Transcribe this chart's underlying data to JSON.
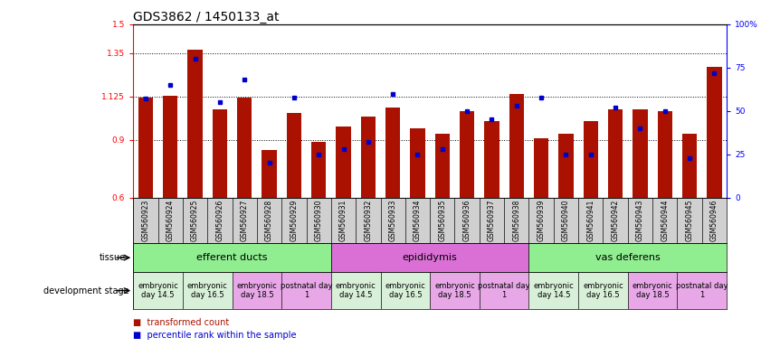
{
  "title": "GDS3862 / 1450133_at",
  "samples": [
    "GSM560923",
    "GSM560924",
    "GSM560925",
    "GSM560926",
    "GSM560927",
    "GSM560928",
    "GSM560929",
    "GSM560930",
    "GSM560931",
    "GSM560932",
    "GSM560933",
    "GSM560934",
    "GSM560935",
    "GSM560936",
    "GSM560937",
    "GSM560938",
    "GSM560939",
    "GSM560940",
    "GSM560941",
    "GSM560942",
    "GSM560943",
    "GSM560944",
    "GSM560945",
    "GSM560946"
  ],
  "red_values": [
    1.12,
    1.13,
    1.37,
    1.06,
    1.12,
    0.85,
    1.04,
    0.89,
    0.97,
    1.02,
    1.07,
    0.96,
    0.93,
    1.05,
    1.0,
    1.14,
    0.91,
    0.93,
    1.0,
    1.06,
    1.06,
    1.05,
    0.93,
    1.28
  ],
  "blue_marker_pct": [
    57,
    65,
    80,
    55,
    68,
    20,
    58,
    25,
    28,
    32,
    60,
    25,
    28,
    50,
    45,
    53,
    58,
    25,
    25,
    52,
    40,
    50,
    23,
    72
  ],
  "ylim_left": [
    0.6,
    1.5
  ],
  "ylim_right": [
    0,
    100
  ],
  "yticks_left": [
    0.6,
    0.9,
    1.125,
    1.35,
    1.5
  ],
  "yticks_right": [
    0,
    25,
    50,
    75,
    100
  ],
  "tissues": [
    {
      "label": "efferent ducts",
      "start": 0,
      "end": 8,
      "color": "#90EE90"
    },
    {
      "label": "epididymis",
      "start": 8,
      "end": 16,
      "color": "#DA70D6"
    },
    {
      "label": "vas deferens",
      "start": 16,
      "end": 24,
      "color": "#90EE90"
    }
  ],
  "dev_stages": [
    {
      "label": "embryonic\nday 14.5",
      "start": 0,
      "end": 2,
      "color": "#D8F0D8"
    },
    {
      "label": "embryonic\nday 16.5",
      "start": 2,
      "end": 4,
      "color": "#D8F0D8"
    },
    {
      "label": "embryonic\nday 18.5",
      "start": 4,
      "end": 6,
      "color": "#E8A8E8"
    },
    {
      "label": "postnatal day\n1",
      "start": 6,
      "end": 8,
      "color": "#E8A8E8"
    },
    {
      "label": "embryonic\nday 14.5",
      "start": 8,
      "end": 10,
      "color": "#D8F0D8"
    },
    {
      "label": "embryonic\nday 16.5",
      "start": 10,
      "end": 12,
      "color": "#D8F0D8"
    },
    {
      "label": "embryonic\nday 18.5",
      "start": 12,
      "end": 14,
      "color": "#E8A8E8"
    },
    {
      "label": "postnatal day\n1",
      "start": 14,
      "end": 16,
      "color": "#E8A8E8"
    },
    {
      "label": "embryonic\nday 14.5",
      "start": 16,
      "end": 18,
      "color": "#D8F0D8"
    },
    {
      "label": "embryonic\nday 16.5",
      "start": 18,
      "end": 20,
      "color": "#D8F0D8"
    },
    {
      "label": "embryonic\nday 18.5",
      "start": 20,
      "end": 22,
      "color": "#E8A8E8"
    },
    {
      "label": "postnatal day\n1",
      "start": 22,
      "end": 24,
      "color": "#E8A8E8"
    }
  ],
  "bar_color": "#AA1100",
  "marker_color": "#0000CC",
  "bg_color": "#FFFFFF",
  "title_fontsize": 10,
  "tick_fontsize": 6.5,
  "sample_fontsize": 5.5,
  "annot_fontsize": 7,
  "tissue_fontsize": 8,
  "dev_fontsize": 6
}
